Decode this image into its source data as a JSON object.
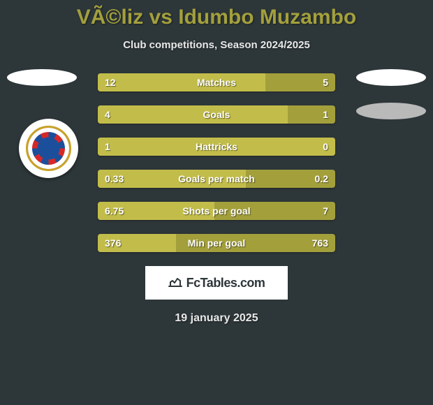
{
  "title_left": "VÃ©liz",
  "vs": "vs",
  "title_right": "Idumbo Muzambo",
  "subtitle": "Club competitions, Season 2024/2025",
  "date": "19 january 2025",
  "brand": "FcTables.com",
  "theme": {
    "background": "#2d3639",
    "title_color": "#a3a03c",
    "bar_bg": "#a3a03c",
    "bar_fill": "#c2bd4a",
    "text_color": "#ffffff",
    "badge_bg_light": "#ffffff",
    "badge_bg_grey": "#b9b9b9"
  },
  "rows": [
    {
      "label": "Matches",
      "left": "12",
      "right": "5",
      "fill_pct": 70.6
    },
    {
      "label": "Goals",
      "left": "4",
      "right": "1",
      "fill_pct": 80.0
    },
    {
      "label": "Hattricks",
      "left": "1",
      "right": "0",
      "fill_pct": 100.0
    },
    {
      "label": "Goals per match",
      "left": "0.33",
      "right": "0.2",
      "fill_pct": 62.3
    },
    {
      "label": "Shots per goal",
      "left": "6.75",
      "right": "7",
      "fill_pct": 49.1
    },
    {
      "label": "Min per goal",
      "left": "376",
      "right": "763",
      "fill_pct": 33.0
    }
  ]
}
